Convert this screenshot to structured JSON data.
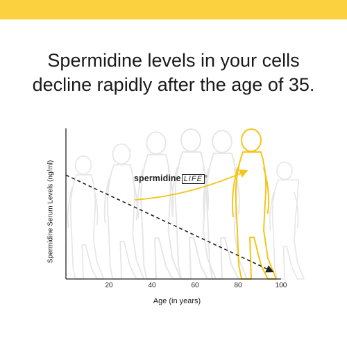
{
  "headline": {
    "line1": "Spermidine levels in your cells",
    "line2": "decline rapidly after the age of 35."
  },
  "brand": {
    "name": "spermidine",
    "suffix": "LIFE",
    "mark": "®"
  },
  "colors": {
    "band": "#fcd13f",
    "accent": "#f5c518",
    "silhouette": "#e6e6e6",
    "axis": "#222222"
  },
  "chart_data": {
    "type": "line",
    "xlabel": "Age (in years)",
    "ylabel": "Spermidine Serum Levels (ng/ml)",
    "xlim": [
      0,
      100
    ],
    "ylim": [
      0,
      100
    ],
    "x_ticks": [
      20,
      40,
      60,
      80,
      100
    ],
    "series": [
      {
        "style": "dashed-arrow",
        "x": [
          0,
          96
        ],
        "y": [
          69,
          5
        ]
      }
    ],
    "annotation": {
      "label": "spermidineLIFE",
      "arrow_from_x": 32,
      "arrow_to_x": 84
    },
    "grid": false,
    "legend": "none"
  }
}
